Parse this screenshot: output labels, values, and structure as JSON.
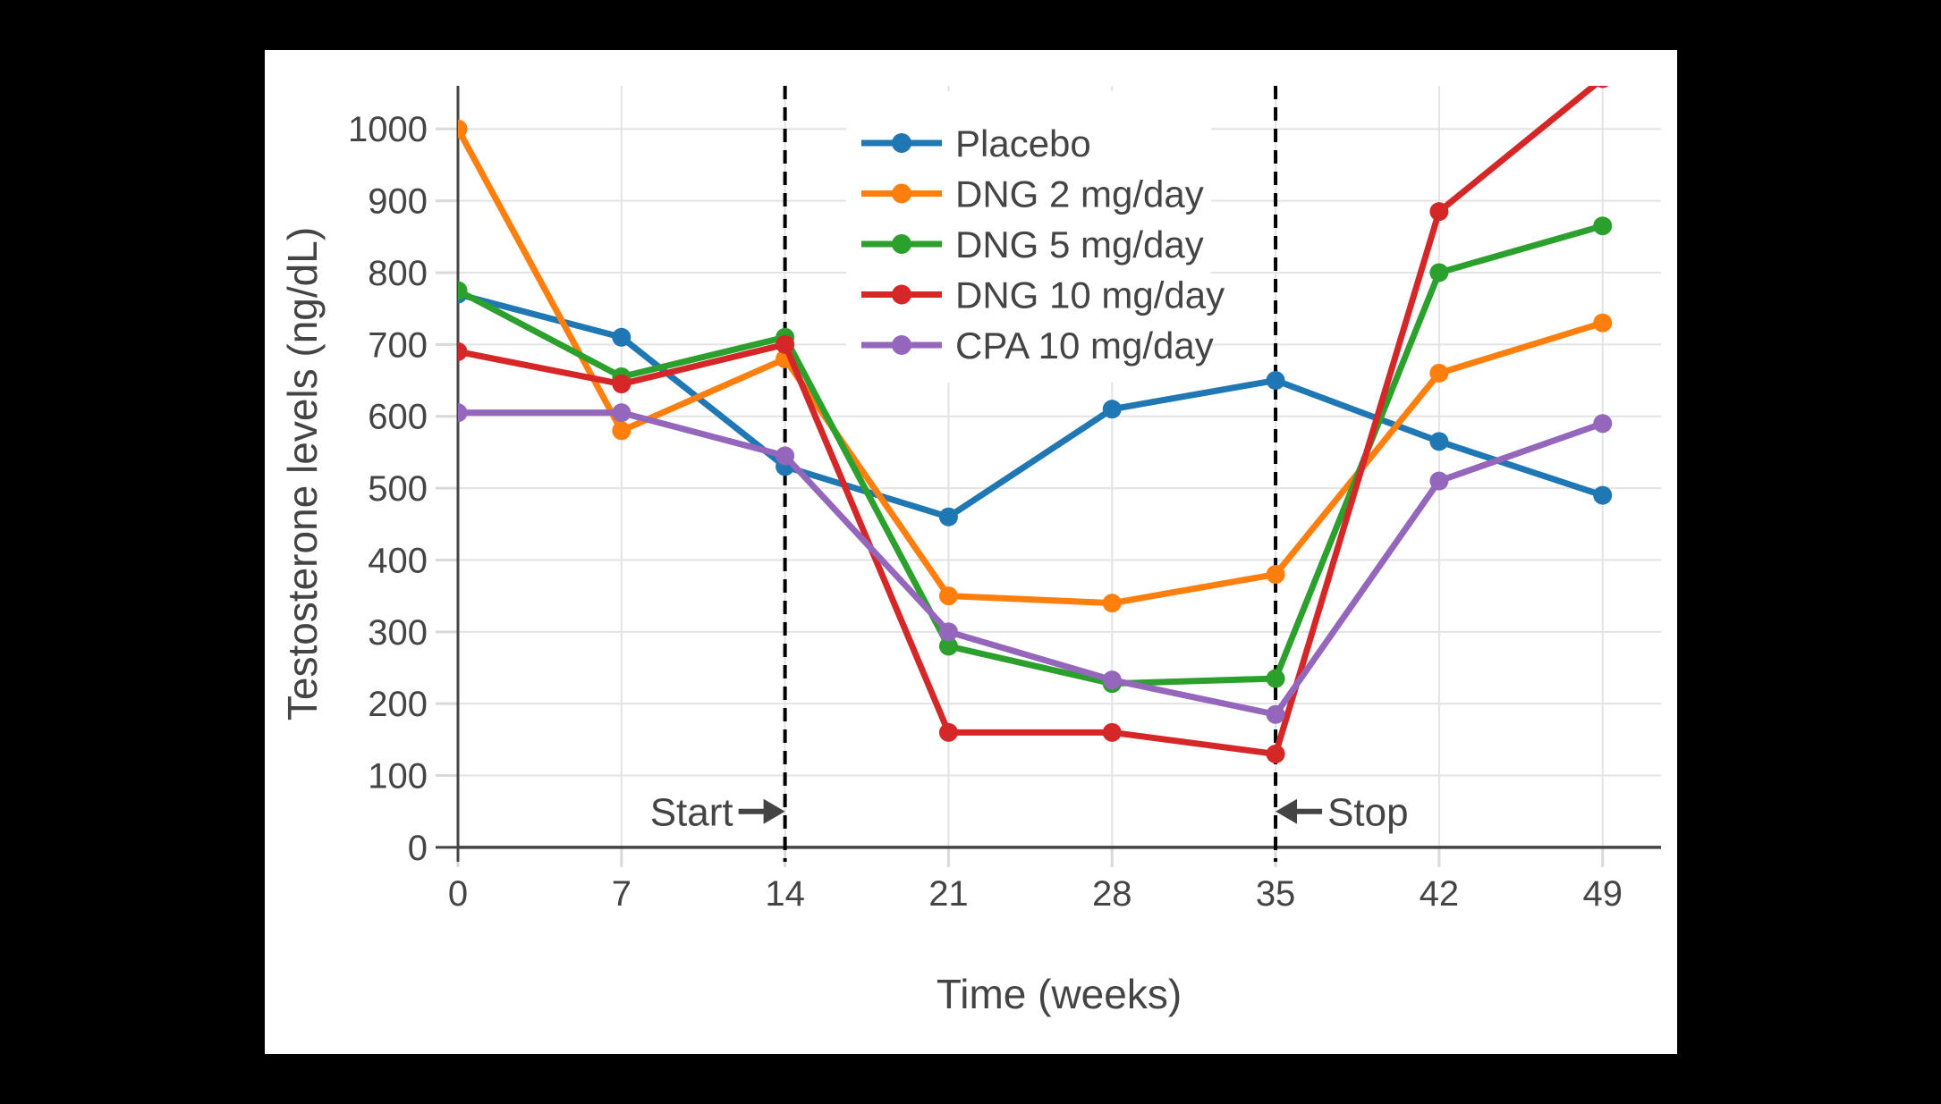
{
  "page": {
    "background": "#000000",
    "card_background": "#ffffff"
  },
  "chart_data": {
    "type": "line",
    "title": "",
    "xlabel": "Time (weeks)",
    "ylabel": "Testosterone levels (ng/dL)",
    "x": [
      0,
      7,
      14,
      21,
      28,
      35,
      42,
      49
    ],
    "x_ticks": [
      0,
      7,
      14,
      21,
      28,
      35,
      42,
      49
    ],
    "y_ticks": [
      0,
      100,
      200,
      300,
      400,
      500,
      600,
      700,
      800,
      900,
      1000
    ],
    "xlim": [
      0,
      51.5
    ],
    "ylim": [
      -20,
      1060
    ],
    "grid": true,
    "markers": true,
    "legend_position": "inside-top-center",
    "series": [
      {
        "name": "Placebo",
        "color": "#1f77b4",
        "values": [
          770,
          710,
          530,
          460,
          610,
          650,
          565,
          490
        ]
      },
      {
        "name": "DNG 2 mg/day",
        "color": "#ff7f0e",
        "values": [
          1000,
          580,
          680,
          350,
          340,
          380,
          660,
          730
        ]
      },
      {
        "name": "DNG 5 mg/day",
        "color": "#2ca02c",
        "values": [
          775,
          655,
          710,
          280,
          228,
          235,
          800,
          865
        ]
      },
      {
        "name": "DNG 10 mg/day",
        "color": "#d62728",
        "values": [
          690,
          645,
          700,
          160,
          160,
          130,
          885,
          1070
        ]
      },
      {
        "name": "CPA 10 mg/day",
        "color": "#9467bd",
        "values": [
          605,
          605,
          545,
          300,
          233,
          185,
          510,
          590
        ]
      }
    ],
    "vlines": [
      {
        "x": 14,
        "style": "dashed",
        "color": "#000000"
      },
      {
        "x": 35,
        "style": "dashed",
        "color": "#000000"
      }
    ],
    "annotations": [
      {
        "text": "Start",
        "x": 14,
        "y": 50,
        "arrow": "right",
        "text_side": "left"
      },
      {
        "text": "Stop",
        "x": 35,
        "y": 50,
        "arrow": "left",
        "text_side": "right"
      }
    ],
    "styles": {
      "text_color": "#444444",
      "axis_color": "#444444",
      "grid_color": "#e3e3e3",
      "tick_color": "#d9d9d9",
      "legend_background": "#ffffff",
      "vline_color": "#000000"
    }
  }
}
